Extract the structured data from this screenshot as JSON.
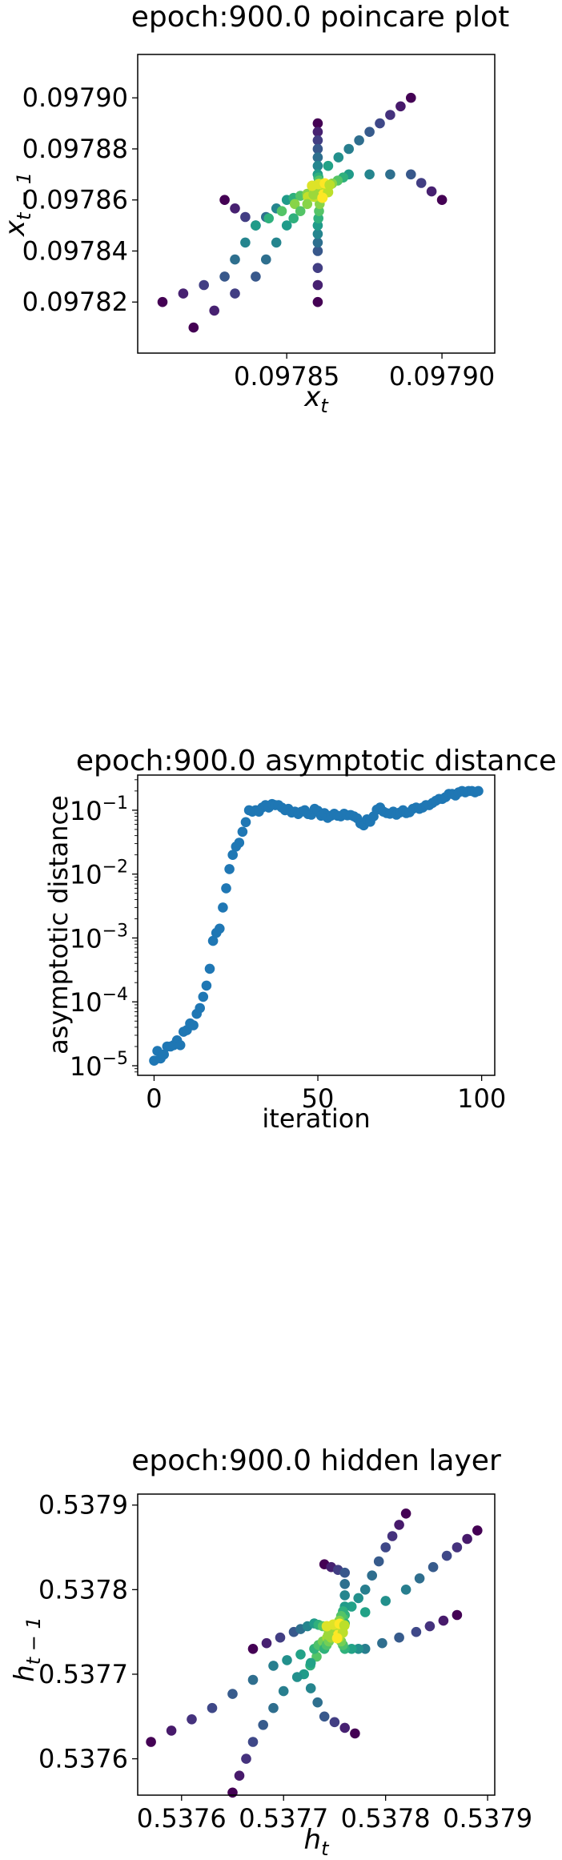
{
  "chart_data": [
    {
      "type": "scatter",
      "title": "epoch:900.0 poincare plot",
      "xlabel": "x_t",
      "ylabel": "x_{t-1}",
      "xlim": [
        0.097802,
        0.097917
      ],
      "ylim": [
        0.0978,
        0.097917
      ],
      "xticks": [
        0.09785,
        0.0979
      ],
      "xtick_labels": [
        "0.09785",
        "0.09790"
      ],
      "yticks": [
        0.09782,
        0.09784,
        0.09786,
        0.09788,
        0.0979
      ],
      "ytick_labels": [
        "0.09782",
        "0.09784",
        "0.09786",
        "0.09788",
        "0.09790"
      ],
      "colormap": "viridis",
      "color_by": "iteration",
      "arms": [
        [
          [
            0.09789,
            0.0979
          ],
          [
            0.09788,
            0.09789
          ],
          [
            0.09787,
            0.09788
          ],
          [
            0.09786,
            0.09787
          ]
        ],
        [
          [
            0.0979,
            0.09786
          ],
          [
            0.09789,
            0.09787
          ],
          [
            0.09787,
            0.09787
          ]
        ],
        [
          [
            0.09786,
            0.09789
          ],
          [
            0.09786,
            0.09788
          ],
          [
            0.09786,
            0.09787
          ]
        ],
        [
          [
            0.09783,
            0.09786
          ],
          [
            0.09784,
            0.09785
          ],
          [
            0.09785,
            0.09786
          ]
        ],
        [
          [
            0.09781,
            0.09782
          ],
          [
            0.09783,
            0.09783
          ],
          [
            0.09784,
            0.09785
          ]
        ],
        [
          [
            0.09786,
            0.09782
          ],
          [
            0.09786,
            0.09784
          ],
          [
            0.09786,
            0.09785
          ]
        ],
        [
          [
            0.09782,
            0.09781
          ],
          [
            0.09784,
            0.09783
          ],
          [
            0.09785,
            0.09785
          ]
        ]
      ],
      "center": [
        0.097861,
        0.097864
      ]
    },
    {
      "type": "scatter",
      "title": "epoch:900.0 asymptotic distance",
      "xlabel": "iteration",
      "ylabel": "asymptotic distance",
      "yscale": "log",
      "xlim": [
        -5,
        104
      ],
      "ylim_exp": [
        -5.15,
        -0.45
      ],
      "xticks": [
        0,
        50,
        100
      ],
      "xtick_labels": [
        "0",
        "50",
        "100"
      ],
      "yticks_exp": [
        -5,
        -4,
        -3,
        -2,
        -1
      ],
      "ytick_labels": [
        "10",
        "10",
        "10",
        "10",
        "10"
      ],
      "ytick_exps": [
        "−5",
        "−4",
        "−3",
        "−2",
        "−1"
      ],
      "color": "#1f77b4",
      "x": [
        0,
        1,
        2,
        3,
        4,
        5,
        6,
        7,
        8,
        9,
        10,
        11,
        12,
        13,
        14,
        15,
        16,
        17,
        18,
        19,
        20,
        21,
        22,
        23,
        24,
        25,
        26,
        27,
        28,
        29,
        30,
        31,
        32,
        33,
        34,
        35,
        36,
        37,
        38,
        39,
        40,
        41,
        42,
        43,
        44,
        45,
        46,
        47,
        48,
        49,
        50,
        51,
        52,
        53,
        54,
        55,
        56,
        57,
        58,
        59,
        60,
        61,
        62,
        63,
        64,
        65,
        66,
        67,
        68,
        69,
        70,
        71,
        72,
        73,
        74,
        75,
        76,
        77,
        78,
        79,
        80,
        81,
        82,
        83,
        84,
        85,
        86,
        87,
        88,
        89,
        90,
        91,
        92,
        93,
        94,
        95,
        96,
        97,
        98,
        99
      ],
      "y": [
        1.2e-05,
        1.7e-05,
        1.3e-05,
        1.5e-05,
        2e-05,
        2e-05,
        2.1e-05,
        2.5e-05,
        2.1e-05,
        3.4e-05,
        3.6e-05,
        4.6e-05,
        4.3e-05,
        6.5e-05,
        8e-05,
        0.00012,
        0.00018,
        0.00033,
        0.0009,
        0.0012,
        0.0014,
        0.003,
        0.006,
        0.012,
        0.02,
        0.027,
        0.031,
        0.046,
        0.065,
        0.1,
        0.095,
        0.1,
        0.095,
        0.11,
        0.12,
        0.11,
        0.125,
        0.12,
        0.12,
        0.11,
        0.1,
        0.105,
        0.092,
        0.095,
        0.087,
        0.095,
        0.1,
        0.087,
        0.085,
        0.105,
        0.098,
        0.082,
        0.09,
        0.076,
        0.082,
        0.088,
        0.082,
        0.08,
        0.088,
        0.083,
        0.084,
        0.08,
        0.075,
        0.062,
        0.058,
        0.072,
        0.066,
        0.08,
        0.102,
        0.11,
        0.095,
        0.09,
        0.088,
        0.095,
        0.085,
        0.092,
        0.1,
        0.09,
        0.093,
        0.105,
        0.11,
        0.105,
        0.11,
        0.12,
        0.12,
        0.13,
        0.14,
        0.15,
        0.15,
        0.16,
        0.18,
        0.18,
        0.17,
        0.19,
        0.2,
        0.19,
        0.2,
        0.2,
        0.19,
        0.2
      ]
    },
    {
      "type": "scatter",
      "title": "epoch:900.0 hidden layer",
      "xlabel": "h_t",
      "ylabel": "h_{t-1}",
      "xlim": [
        0.537557,
        0.537907
      ],
      "ylim": [
        0.537557,
        0.537913
      ],
      "xticks": [
        0.5376,
        0.5377,
        0.5378,
        0.5379
      ],
      "xtick_labels": [
        "0.5376",
        "0.5377",
        "0.5378",
        "0.5379"
      ],
      "yticks": [
        0.5376,
        0.5377,
        0.5378,
        0.5379
      ],
      "ytick_labels": [
        "0.5376",
        "0.5377",
        "0.5378",
        "0.5379"
      ],
      "colormap": "viridis",
      "color_by": "iteration",
      "arms": [
        [
          [
            0.53782,
            0.53789
          ],
          [
            0.5378,
            0.53785
          ],
          [
            0.53778,
            0.5378
          ],
          [
            0.53776,
            0.53777
          ]
        ],
        [
          [
            0.53789,
            0.53787
          ],
          [
            0.53786,
            0.53784
          ],
          [
            0.53782,
            0.5378
          ],
          [
            0.53776,
            0.53776
          ]
        ],
        [
          [
            0.53787,
            0.53777
          ],
          [
            0.53783,
            0.53775
          ],
          [
            0.53778,
            0.53773
          ],
          [
            0.53776,
            0.53773
          ]
        ],
        [
          [
            0.53774,
            0.53783
          ],
          [
            0.53776,
            0.53782
          ],
          [
            0.53776,
            0.53778
          ]
        ],
        [
          [
            0.53767,
            0.53773
          ],
          [
            0.53771,
            0.53775
          ],
          [
            0.53773,
            0.53776
          ]
        ],
        [
          [
            0.53777,
            0.53763
          ],
          [
            0.53774,
            0.53765
          ],
          [
            0.53772,
            0.5377
          ]
        ],
        [
          [
            0.53757,
            0.53762
          ],
          [
            0.53763,
            0.53766
          ],
          [
            0.53769,
            0.53771
          ],
          [
            0.53773,
            0.53773
          ]
        ],
        [
          [
            0.53765,
            0.53756
          ],
          [
            0.53767,
            0.53762
          ],
          [
            0.5377,
            0.53768
          ],
          [
            0.53774,
            0.53773
          ]
        ]
      ],
      "center": [
        0.537751,
        0.537752
      ]
    }
  ]
}
